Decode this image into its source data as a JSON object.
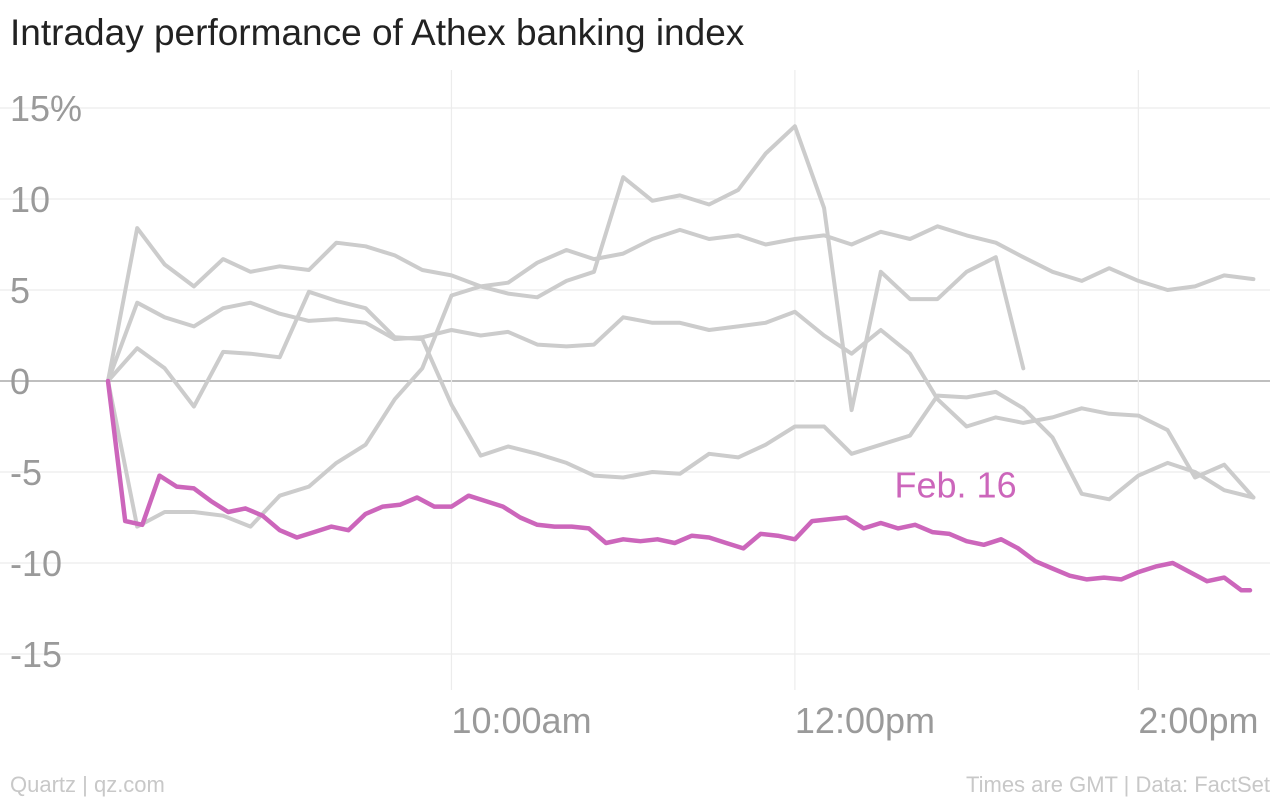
{
  "chart_data": {
    "type": "line",
    "title": "Intraday performance of Athex banking index",
    "xlabel": "",
    "ylabel": "",
    "x_unit": "hours (GMT, 24h clock)",
    "xlim": [
      7.5,
      14.7
    ],
    "ylim": [
      -17,
      16
    ],
    "y_ticks": [
      15,
      10,
      5,
      0,
      -5,
      -10,
      -15
    ],
    "y_tick_labels": [
      "15%",
      "10",
      "5",
      "0",
      "-5",
      "-10",
      "-15"
    ],
    "x_ticks": [
      10,
      12,
      14
    ],
    "x_tick_labels": [
      "10:00am",
      "12:00pm",
      "2:00pm"
    ],
    "grid": true,
    "annotation": "Feb. 16",
    "series": [
      {
        "highlight": false,
        "color": "#cccccc",
        "x": [
          8.0,
          8.17,
          8.33,
          8.5,
          8.67,
          8.83,
          9.0,
          9.17,
          9.33,
          9.5,
          9.67,
          9.83,
          10.0,
          10.17,
          10.33,
          10.5,
          10.67,
          10.83,
          11.0,
          11.17,
          11.33,
          11.5,
          11.67,
          11.83,
          12.0,
          12.17,
          12.33,
          12.5,
          12.67,
          12.83,
          13.0,
          13.17,
          13.33,
          13.5,
          13.67,
          13.83,
          14.0,
          14.17,
          14.33,
          14.5,
          14.67
        ],
        "y": [
          0,
          8.4,
          6.4,
          5.2,
          6.7,
          6.0,
          6.3,
          6.1,
          7.6,
          7.4,
          6.9,
          6.1,
          5.8,
          5.2,
          5.4,
          6.5,
          7.2,
          6.7,
          7.0,
          7.8,
          8.3,
          7.8,
          8.0,
          7.5,
          7.8,
          8.0,
          7.5,
          8.2,
          7.8,
          8.5,
          8.0,
          7.6,
          6.8,
          6.0,
          5.5,
          6.2,
          5.5,
          5.0,
          5.2,
          5.8,
          5.6
        ]
      },
      {
        "highlight": false,
        "color": "#cccccc",
        "x": [
          8.0,
          8.17,
          8.33,
          8.5,
          8.67,
          8.83,
          9.0,
          9.17,
          9.33,
          9.5,
          9.67,
          9.83,
          10.0,
          10.17,
          10.33,
          10.5,
          10.67,
          10.83,
          11.0,
          11.17,
          11.33,
          11.5,
          11.67,
          11.83,
          12.0,
          12.17,
          12.33,
          12.5,
          12.67,
          12.83,
          13.0,
          13.17,
          13.33,
          13.5,
          13.67,
          13.83,
          14.0,
          14.17,
          14.33,
          14.5,
          14.67
        ],
        "y": [
          0,
          4.3,
          3.5,
          3.0,
          4.0,
          4.3,
          3.7,
          3.3,
          3.4,
          3.2,
          2.3,
          2.4,
          2.8,
          2.5,
          2.7,
          2.0,
          1.9,
          2.0,
          3.5,
          3.2,
          3.2,
          2.8,
          3.0,
          3.2,
          3.8,
          2.5,
          1.5,
          2.8,
          1.5,
          -1.0,
          -2.5,
          -2.0,
          -2.3,
          -2.0,
          -1.5,
          -1.8,
          -1.9,
          -2.7,
          -5.3,
          -4.6,
          -6.4
        ]
      },
      {
        "highlight": false,
        "color": "#cccccc",
        "x": [
          8.0,
          8.17,
          8.33,
          8.5,
          8.67,
          8.83,
          9.0,
          9.17,
          9.33,
          9.5,
          9.67,
          9.83,
          10.0,
          10.17,
          10.33,
          10.5,
          10.67,
          10.83,
          11.0,
          11.17,
          11.33,
          11.5,
          11.67,
          11.83,
          12.0,
          12.17,
          12.33,
          12.5,
          12.67,
          12.83,
          13.0,
          13.17,
          13.33,
          13.5,
          13.67,
          13.83,
          14.0,
          14.17,
          14.33,
          14.5,
          14.67
        ],
        "y": [
          0,
          1.8,
          0.7,
          -1.4,
          1.6,
          1.5,
          1.3,
          4.9,
          4.4,
          4.0,
          2.4,
          2.3,
          -1.3,
          -4.1,
          -3.6,
          -4.0,
          -4.5,
          -5.2,
          -5.3,
          -5.0,
          -5.1,
          -4.0,
          -4.2,
          -3.5,
          -2.5,
          -2.5,
          -4.0,
          -3.5,
          -3.0,
          -0.8,
          -0.9,
          -0.6,
          -1.5,
          -3.1,
          -6.2,
          -6.5,
          -5.2,
          -4.5,
          -5.0,
          -6.0,
          -6.4
        ]
      },
      {
        "highlight": false,
        "color": "#cccccc",
        "x": [
          8.0,
          8.17,
          8.33,
          8.5,
          8.67,
          8.83,
          9.0,
          9.17,
          9.33,
          9.5,
          9.67,
          9.83,
          10.0,
          10.17,
          10.33,
          10.5,
          10.67,
          10.83,
          11.0,
          11.17,
          11.33,
          11.5,
          11.67,
          11.83,
          12.0,
          12.17,
          12.33,
          12.5,
          12.67,
          12.83,
          13.0,
          13.17,
          13.33
        ],
        "y": [
          0,
          -8.0,
          -7.2,
          -7.2,
          -7.4,
          -8.0,
          -6.3,
          -5.8,
          -4.5,
          -3.5,
          -1.0,
          0.7,
          4.7,
          5.2,
          4.8,
          4.6,
          5.5,
          6.0,
          11.2,
          9.9,
          10.2,
          9.7,
          10.5,
          12.5,
          14.0,
          9.5,
          -1.6,
          6.0,
          4.5,
          4.5,
          6.0,
          6.8,
          0.7
        ]
      },
      {
        "highlight": true,
        "name": "Feb. 16",
        "color": "#cc66bb",
        "x": [
          8.0,
          8.1,
          8.2,
          8.3,
          8.4,
          8.5,
          8.6,
          8.7,
          8.8,
          8.9,
          9.0,
          9.1,
          9.2,
          9.3,
          9.4,
          9.5,
          9.6,
          9.7,
          9.8,
          9.9,
          10.0,
          10.1,
          10.2,
          10.3,
          10.4,
          10.5,
          10.6,
          10.7,
          10.8,
          10.9,
          11.0,
          11.1,
          11.2,
          11.3,
          11.4,
          11.5,
          11.6,
          11.7,
          11.8,
          11.9,
          12.0,
          12.1,
          12.2,
          12.3,
          12.4,
          12.5,
          12.6,
          12.7,
          12.8,
          12.9,
          13.0,
          13.1,
          13.2,
          13.3,
          13.4,
          13.5,
          13.6,
          13.7,
          13.8,
          13.9,
          14.0,
          14.1,
          14.2,
          14.3,
          14.4,
          14.5,
          14.6,
          14.65
        ],
        "y": [
          0,
          -7.7,
          -7.9,
          -5.2,
          -5.8,
          -5.9,
          -6.6,
          -7.2,
          -7.0,
          -7.4,
          -8.2,
          -8.6,
          -8.3,
          -8.0,
          -8.2,
          -7.3,
          -6.9,
          -6.8,
          -6.4,
          -6.9,
          -6.9,
          -6.3,
          -6.6,
          -6.9,
          -7.5,
          -7.9,
          -8.0,
          -8.0,
          -8.1,
          -8.9,
          -8.7,
          -8.8,
          -8.7,
          -8.9,
          -8.5,
          -8.6,
          -8.9,
          -9.2,
          -8.4,
          -8.5,
          -8.7,
          -7.7,
          -7.6,
          -7.5,
          -8.1,
          -7.8,
          -8.1,
          -7.9,
          -8.3,
          -8.4,
          -8.8,
          -9.0,
          -8.7,
          -9.2,
          -9.9,
          -10.3,
          -10.7,
          -10.9,
          -10.8,
          -10.9,
          -10.5,
          -10.2,
          -10.0,
          -10.5,
          -11.0,
          -10.8,
          -11.5,
          -11.5
        ]
      }
    ]
  },
  "footer": {
    "source_left": "Quartz | qz.com",
    "source_right": "Times are GMT | Data: FactSet"
  }
}
